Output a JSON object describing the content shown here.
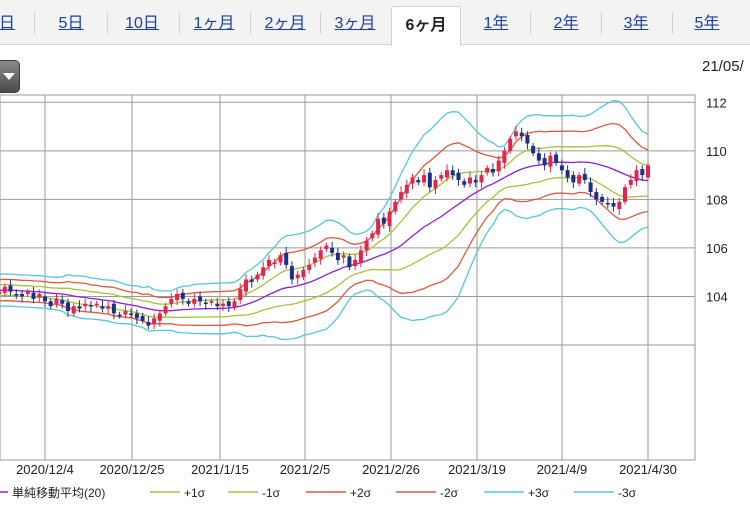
{
  "tabs": [
    "日",
    "5日",
    "10日",
    "1ヶ月",
    "2ヶ月",
    "3ヶ月",
    "6ヶ月",
    "1年",
    "2年",
    "3年",
    "5年"
  ],
  "active_tab": "6ヶ月",
  "date_label": "21/05/",
  "colors": {
    "sma": "#8b1fd4",
    "sigma1": "#a6c43a",
    "sigma2": "#e0593c",
    "sigma3": "#55c7db",
    "up": "#e4244a",
    "down": "#1e2f86",
    "grid": "#9a9a9a"
  },
  "chart_data": {
    "type": "line",
    "subtype": "candlestick-with-bollinger-bands",
    "y_ticks": [
      104,
      106,
      108,
      110,
      112
    ],
    "ylim": [
      102.0,
      112.3
    ],
    "x_tick_labels": [
      "2020/12/4",
      "2020/12/25",
      "2021/1/15",
      "2021/2/5",
      "2021/2/26",
      "2021/3/19",
      "2021/4/9",
      "2021/4/30"
    ],
    "grid": true,
    "legend": [
      {
        "label": "単純移動平均(20)",
        "color_key": "sma"
      },
      {
        "label": "+1σ",
        "color_key": "sigma1"
      },
      {
        "label": "-1σ",
        "color_key": "sigma1"
      },
      {
        "label": "+2σ",
        "color_key": "sigma2"
      },
      {
        "label": "-2σ",
        "color_key": "sigma2"
      },
      {
        "label": "+3σ",
        "color_key": "sigma3"
      },
      {
        "label": "-3σ",
        "color_key": "sigma3"
      }
    ],
    "close": [
      104.5,
      104.3,
      104.2,
      104.4,
      104.1,
      104.3,
      104.0,
      104.2,
      104.4,
      104.2,
      104.1,
      104.0,
      104.2,
      103.9,
      104.1,
      103.8,
      103.6,
      103.9,
      103.7,
      103.4,
      103.6,
      103.5,
      103.7,
      103.6,
      103.7,
      103.5,
      103.6,
      103.3,
      103.2,
      103.4,
      103.3,
      103.1,
      103.0,
      102.8,
      103.1,
      103.3,
      103.6,
      103.9,
      104.1,
      103.9,
      103.7,
      103.9,
      103.8,
      103.7,
      103.8,
      103.6,
      103.7,
      103.6,
      103.8,
      104.3,
      104.7,
      104.6,
      104.9,
      105.2,
      105.5,
      105.4,
      105.7,
      105.3,
      104.7,
      104.9,
      105.1,
      105.3,
      105.6,
      105.9,
      106.1,
      105.8,
      105.5,
      105.7,
      105.2,
      105.5,
      105.9,
      106.3,
      106.6,
      107.2,
      107.0,
      107.5,
      107.9,
      108.3,
      108.6,
      108.9,
      108.7,
      109.0,
      108.5,
      108.8,
      109.0,
      109.2,
      109.0,
      108.8,
      108.6,
      108.9,
      108.7,
      109.0,
      109.3,
      109.1,
      109.6,
      110.0,
      110.5,
      110.8,
      110.6,
      110.3,
      109.9,
      109.6,
      109.4,
      109.8,
      109.5,
      109.2,
      108.9,
      108.7,
      109.0,
      108.8,
      108.3,
      108.0,
      107.9,
      107.8,
      107.7,
      107.9,
      108.5,
      108.8,
      109.2,
      109.0,
      109.4
    ]
  },
  "series_labels": {
    "sma_20": "単純移動平均(20)",
    "plus1": "+1σ",
    "minus1": "-1σ",
    "plus2": "+2σ",
    "minus2": "-2σ",
    "plus3": "+3σ",
    "minus3": "-3σ"
  }
}
